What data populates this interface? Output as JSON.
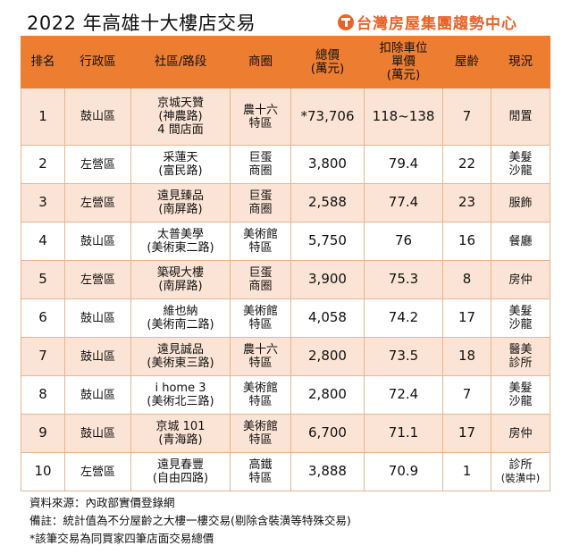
{
  "title": "2022 年高雄十大樓店交易",
  "brand": {
    "name": "台灣房屋集團趨勢中心",
    "color": "#e8632a"
  },
  "colors": {
    "header_bg": "#ed7d31",
    "row_odd_bg": "#fbe4d5",
    "row_even_bg": "#ffffff",
    "border": "#e8b48f"
  },
  "table": {
    "headers": [
      [
        "排名"
      ],
      [
        "行政區"
      ],
      [
        "社區/路段"
      ],
      [
        "商圈"
      ],
      [
        "總價",
        "(萬元)"
      ],
      [
        "扣除車位",
        "單價",
        "(萬元)"
      ],
      [
        "屋齡"
      ],
      [
        "現況"
      ]
    ],
    "rows": [
      {
        "rank": "1",
        "district": "鼓山區",
        "community": [
          "京城天贊",
          "(神農路)",
          "4 間店面"
        ],
        "area": [
          "農十六",
          "特區"
        ],
        "total": "*73,706",
        "unit": "118~138",
        "age": "7",
        "status": [
          "閒置"
        ]
      },
      {
        "rank": "2",
        "district": "左營區",
        "community": [
          "采蓮天",
          "(富民路)"
        ],
        "area": [
          "巨蛋",
          "商圈"
        ],
        "total": "3,800",
        "unit": "79.4",
        "age": "22",
        "status": [
          "美髮",
          "沙龍"
        ]
      },
      {
        "rank": "3",
        "district": "左營區",
        "community": [
          "遠見臻品",
          "(南屏路)"
        ],
        "area": [
          "巨蛋",
          "商圈"
        ],
        "total": "2,588",
        "unit": "77.4",
        "age": "23",
        "status": [
          "服飾"
        ]
      },
      {
        "rank": "4",
        "district": "鼓山區",
        "community": [
          "太普美學",
          "(美術東二路)"
        ],
        "area": [
          "美術館",
          "特區"
        ],
        "total": "5,750",
        "unit": "76",
        "age": "16",
        "status": [
          "餐廳"
        ]
      },
      {
        "rank": "5",
        "district": "左營區",
        "community": [
          "築硯大樓",
          "(南屏路)"
        ],
        "area": [
          "巨蛋",
          "商圈"
        ],
        "total": "3,900",
        "unit": "75.3",
        "age": "8",
        "status": [
          "房仲"
        ]
      },
      {
        "rank": "6",
        "district": "鼓山區",
        "community": [
          "維也納",
          "(美術南二路)"
        ],
        "area": [
          "美術館",
          "特區"
        ],
        "total": "4,058",
        "unit": "74.2",
        "age": "17",
        "status": [
          "美髮",
          "沙龍"
        ]
      },
      {
        "rank": "7",
        "district": "鼓山區",
        "community": [
          "遠見誠品",
          "(美術東三路)"
        ],
        "area": [
          "農十六",
          "特區"
        ],
        "total": "2,800",
        "unit": "73.5",
        "age": "18",
        "status": [
          "醫美",
          "診所"
        ]
      },
      {
        "rank": "8",
        "district": "鼓山區",
        "community": [
          "i home 3",
          "(美術北三路)"
        ],
        "area": [
          "美術館",
          "特區"
        ],
        "total": "2,800",
        "unit": "72.4",
        "age": "7",
        "status": [
          "美髮",
          "沙龍"
        ]
      },
      {
        "rank": "9",
        "district": "鼓山區",
        "community": [
          "京城 101",
          "(青海路)"
        ],
        "area": [
          "美術館",
          "特區"
        ],
        "total": "6,700",
        "unit": "71.1",
        "age": "17",
        "status": [
          "房仲"
        ]
      },
      {
        "rank": "10",
        "district": "左營區",
        "community": [
          "遠見春豐",
          "(自由四路)"
        ],
        "area": [
          "高鐵",
          "特區"
        ],
        "total": "3,888",
        "unit": "70.9",
        "age": "1",
        "status": [
          "診所",
          "(裝潢中)"
        ]
      }
    ]
  },
  "notes": [
    "資料來源：內政部實價登錄網",
    "備註：統計值為不分屋齡之大樓一樓交易(剔除含裝潢等特殊交易)",
    "*該筆交易為同買家四筆店面交易總價"
  ]
}
